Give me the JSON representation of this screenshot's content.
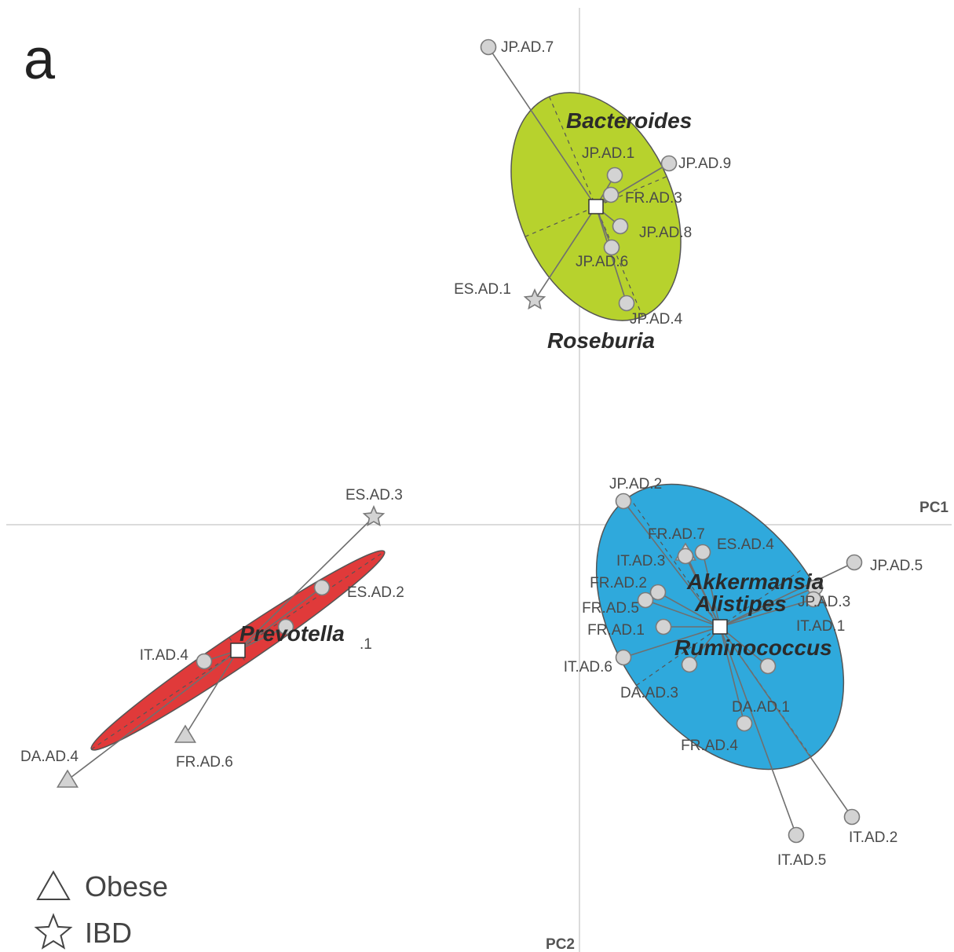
{
  "panel_label": "a",
  "colors": {
    "prevotella_cluster": "#e03a3a",
    "bacteroides_cluster": "#b7d22d",
    "ruminococcus_cluster": "#2fa9dc",
    "marker_fill": "#d3d3d3"
  },
  "chart_data": {
    "type": "scatter",
    "xlabel": "PC1",
    "ylabel": "PC2",
    "xlim": [
      -1.0,
      0.6
    ],
    "ylim": [
      -0.62,
      0.8
    ],
    "grid": false,
    "legend_placement": "bottom-left",
    "legend": [
      {
        "shape": "triangle",
        "label": "Obese"
      },
      {
        "shape": "star",
        "label": "IBD"
      }
    ],
    "clusters": [
      {
        "genus_labels": [
          "Prevotella"
        ],
        "color": "#e03a3a",
        "centroid": [
          -0.435,
          -0.16
        ],
        "ellipse": {
          "rx": 0.225,
          "ry": 0.02,
          "angle_deg": -34
        },
        "samples": [
          {
            "label": "ES.AD.3",
            "x": -0.262,
            "y": 0.01,
            "shape": "star"
          },
          {
            "label": "ES.AD.2",
            "x": -0.328,
            "y": -0.08,
            "shape": "circle"
          },
          {
            "label": ".1",
            "x": -0.374,
            "y": -0.13,
            "shape": "circle"
          },
          {
            "label": "IT.AD.4",
            "x": -0.478,
            "y": -0.174,
            "shape": "circle"
          },
          {
            "label": "FR.AD.6",
            "x": -0.502,
            "y": -0.268,
            "shape": "triangle"
          },
          {
            "label": "DA.AD.4",
            "x": -0.652,
            "y": -0.325,
            "shape": "triangle"
          }
        ]
      },
      {
        "genus_labels": [
          "Bacteroides",
          "Roseburia"
        ],
        "color": "#b7d22d",
        "centroid": [
          0.021,
          0.405
        ],
        "ellipse": {
          "rx": 0.098,
          "ry": 0.152,
          "angle_deg": -23
        },
        "samples": [
          {
            "label": "JP.AD.7",
            "x": -0.116,
            "y": 0.608,
            "shape": "circle"
          },
          {
            "label": "JP.AD.1",
            "x": 0.045,
            "y": 0.445,
            "shape": "circle"
          },
          {
            "label": "JP.AD.9",
            "x": 0.114,
            "y": 0.46,
            "shape": "circle"
          },
          {
            "label": "FR.AD.3",
            "x": 0.04,
            "y": 0.42,
            "shape": "circle"
          },
          {
            "label": "JP.AD.8",
            "x": 0.052,
            "y": 0.38,
            "shape": "circle"
          },
          {
            "label": "JP.AD.6",
            "x": 0.041,
            "y": 0.353,
            "shape": "circle"
          },
          {
            "label": "ES.AD.1",
            "x": -0.057,
            "y": 0.286,
            "shape": "star"
          },
          {
            "label": "JP.AD.4",
            "x": 0.06,
            "y": 0.282,
            "shape": "circle"
          }
        ]
      },
      {
        "genus_labels": [
          "Akkermansia",
          "Alistipes",
          "Ruminococcus"
        ],
        "color": "#2fa9dc",
        "centroid": [
          0.179,
          -0.13
        ],
        "ellipse": {
          "rx": 0.13,
          "ry": 0.202,
          "angle_deg": -35
        },
        "samples": [
          {
            "label": "JP.AD.2",
            "x": 0.056,
            "y": 0.03,
            "shape": "circle"
          },
          {
            "label": "FR.AD.7",
            "x": 0.135,
            "y": -0.036,
            "shape": "triangle"
          },
          {
            "label": "ES.AD.4",
            "x": 0.157,
            "y": -0.035,
            "shape": "circle"
          },
          {
            "label": "IT.AD.3",
            "x": 0.135,
            "y": -0.04,
            "shape": "circle"
          },
          {
            "label": "JP.AD.5",
            "x": 0.35,
            "y": -0.048,
            "shape": "circle"
          },
          {
            "label": "JP.AD.3",
            "x": 0.3,
            "y": -0.08,
            "shape": "circle"
          },
          {
            "label": "IT.AD.1",
            "x": 0.298,
            "y": -0.095,
            "shape": "circle"
          },
          {
            "label": "FR.AD.2",
            "x": 0.1,
            "y": -0.086,
            "shape": "circle"
          },
          {
            "label": "FR.AD.5",
            "x": 0.084,
            "y": -0.096,
            "shape": "circle"
          },
          {
            "label": "FR.AD.1",
            "x": 0.107,
            "y": -0.13,
            "shape": "circle"
          },
          {
            "label": "IT.AD.6",
            "x": 0.056,
            "y": -0.169,
            "shape": "circle"
          },
          {
            "label": "DA.AD.3",
            "x": 0.14,
            "y": -0.178,
            "shape": "circle"
          },
          {
            "label": "DA.AD.1",
            "x": 0.24,
            "y": -0.18,
            "shape": "circle"
          },
          {
            "label": "FR.AD.4",
            "x": 0.21,
            "y": -0.253,
            "shape": "circle"
          },
          {
            "label": "IT.AD.2",
            "x": 0.347,
            "y": -0.372,
            "shape": "circle"
          },
          {
            "label": "IT.AD.5",
            "x": 0.276,
            "y": -0.395,
            "shape": "circle"
          }
        ]
      }
    ]
  }
}
